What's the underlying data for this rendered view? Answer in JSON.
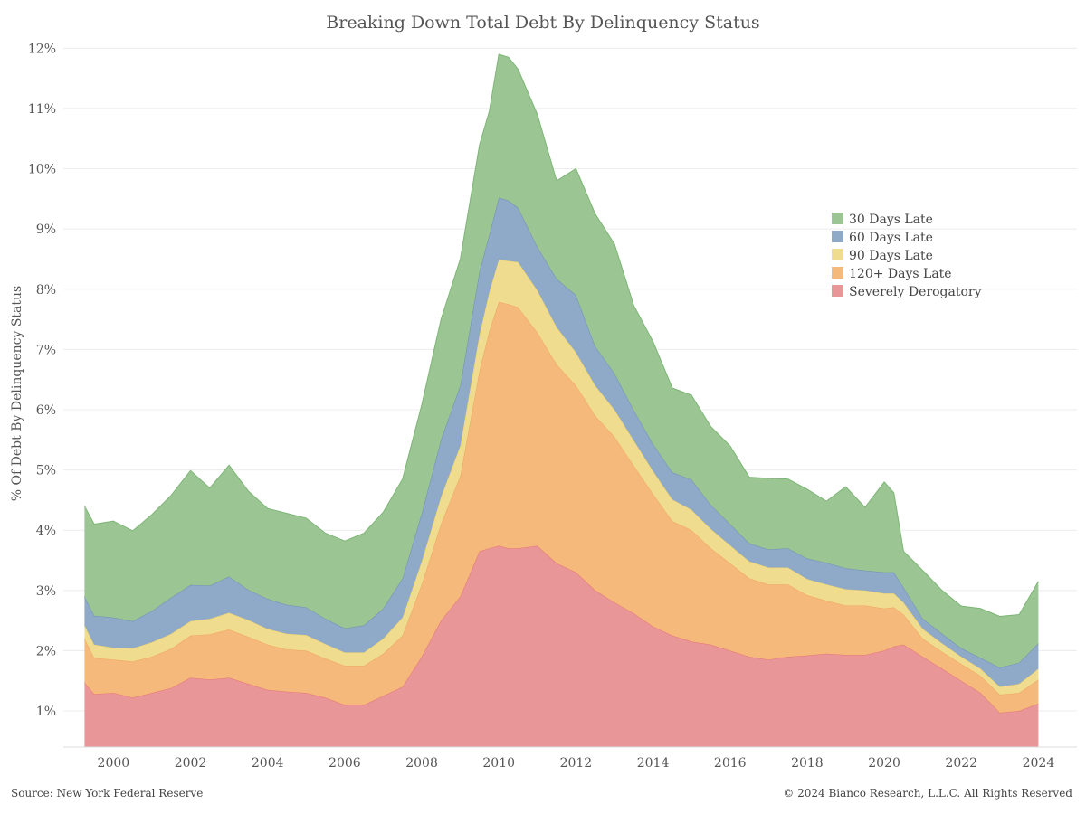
{
  "title": "Breaking Down Total Debt By Delinquency Status",
  "footer": {
    "source": "Source: New York Federal Reserve",
    "copyright": "© 2024 Bianco Research, L.L.C. All Rights Reserved"
  },
  "colors": {
    "severely_derogatory": "#e99699",
    "days120": "#f4b97b",
    "days90": "#f0dc8e",
    "days60": "#8fa9c8",
    "days30": "#9bc694",
    "edge_severely_derogatory": "#e5737a",
    "edge_days120": "#f0a35e",
    "edge_days90": "#e8cf6c",
    "edge_days60": "#6f8fb5",
    "edge_days30": "#7cb574"
  },
  "chart_data": {
    "type": "area",
    "stacked": true,
    "ylabel": "% Of Debt By Delinquency Status",
    "xlabel": "",
    "ylim": [
      0.4,
      12.2
    ],
    "xlim": [
      1998.7,
      2025.0
    ],
    "y_ticks": [
      1,
      2,
      3,
      4,
      5,
      6,
      7,
      8,
      9,
      10,
      11,
      12
    ],
    "y_tick_labels": [
      "1%",
      "2%",
      "3%",
      "4%",
      "5%",
      "6%",
      "7%",
      "8%",
      "9%",
      "10%",
      "11%",
      "12%"
    ],
    "x_ticks": [
      2000,
      2002,
      2004,
      2006,
      2008,
      2010,
      2012,
      2014,
      2016,
      2018,
      2020,
      2022,
      2024
    ],
    "x_tick_labels": [
      "2000",
      "2002",
      "2004",
      "2006",
      "2008",
      "2010",
      "2012",
      "2014",
      "2016",
      "2018",
      "2020",
      "2022",
      "2024"
    ],
    "grid": "horizontal",
    "legend_position": "right",
    "legend_order": [
      "30 Days Late",
      "60 Days Late",
      "90 Days Late",
      "120+ Days Late",
      "Severely Derogatory"
    ],
    "x": [
      1999.25,
      1999.5,
      2000,
      2000.5,
      2001,
      2001.5,
      2002,
      2002.5,
      2003,
      2003.5,
      2004,
      2004.5,
      2005,
      2005.5,
      2006,
      2006.5,
      2007,
      2007.5,
      2008,
      2008.5,
      2009,
      2009.5,
      2009.75,
      2010,
      2010.25,
      2010.5,
      2011,
      2011.5,
      2012,
      2012.5,
      2013,
      2013.5,
      2014,
      2014.5,
      2015,
      2015.5,
      2016,
      2016.5,
      2017,
      2017.5,
      2018,
      2018.5,
      2019,
      2019.5,
      2020,
      2020.25,
      2020.5,
      2021,
      2021.5,
      2022,
      2022.5,
      2023,
      2023.5,
      2024
    ],
    "series": [
      {
        "name": "Severely Derogatory",
        "key": "severely_derogatory",
        "values": [
          1.47,
          1.28,
          1.3,
          1.22,
          1.3,
          1.38,
          1.55,
          1.52,
          1.55,
          1.45,
          1.35,
          1.32,
          1.3,
          1.22,
          1.1,
          1.1,
          1.25,
          1.4,
          1.9,
          2.5,
          2.9,
          3.65,
          3.7,
          3.74,
          3.7,
          3.7,
          3.74,
          3.45,
          3.3,
          3.0,
          2.8,
          2.62,
          2.4,
          2.25,
          2.15,
          2.1,
          2.0,
          1.9,
          1.85,
          1.9,
          1.92,
          1.95,
          1.93,
          1.93,
          2.0,
          2.07,
          2.1,
          1.9,
          1.7,
          1.5,
          1.3,
          0.97,
          1.0,
          1.12
        ]
      },
      {
        "name": "120+ Days Late",
        "key": "days120",
        "values": [
          0.73,
          0.6,
          0.55,
          0.6,
          0.6,
          0.65,
          0.7,
          0.75,
          0.8,
          0.78,
          0.75,
          0.7,
          0.7,
          0.65,
          0.65,
          0.65,
          0.7,
          0.85,
          1.2,
          1.6,
          2.0,
          3.0,
          3.6,
          4.05,
          4.05,
          4.0,
          3.54,
          3.3,
          3.1,
          2.9,
          2.75,
          2.45,
          2.2,
          1.9,
          1.85,
          1.6,
          1.45,
          1.3,
          1.25,
          1.2,
          1.0,
          0.88,
          0.82,
          0.82,
          0.7,
          0.65,
          0.5,
          0.3,
          0.28,
          0.28,
          0.28,
          0.3,
          0.3,
          0.4
        ]
      },
      {
        "name": "90 Days Late",
        "key": "days90",
        "values": [
          0.22,
          0.22,
          0.2,
          0.22,
          0.24,
          0.25,
          0.24,
          0.26,
          0.28,
          0.28,
          0.26,
          0.26,
          0.26,
          0.24,
          0.22,
          0.22,
          0.25,
          0.3,
          0.38,
          0.45,
          0.5,
          0.6,
          0.65,
          0.7,
          0.72,
          0.75,
          0.7,
          0.62,
          0.55,
          0.5,
          0.45,
          0.42,
          0.38,
          0.36,
          0.34,
          0.32,
          0.3,
          0.28,
          0.28,
          0.28,
          0.27,
          0.27,
          0.27,
          0.25,
          0.25,
          0.23,
          0.2,
          0.16,
          0.14,
          0.12,
          0.12,
          0.13,
          0.15,
          0.18
        ]
      },
      {
        "name": "60 Days Late",
        "key": "days60",
        "values": [
          0.48,
          0.48,
          0.5,
          0.45,
          0.52,
          0.6,
          0.6,
          0.55,
          0.6,
          0.5,
          0.5,
          0.48,
          0.46,
          0.42,
          0.4,
          0.45,
          0.5,
          0.65,
          0.8,
          0.95,
          1.0,
          1.05,
          0.95,
          1.03,
          1.0,
          0.9,
          0.72,
          0.8,
          0.95,
          0.65,
          0.6,
          0.5,
          0.45,
          0.45,
          0.5,
          0.4,
          0.35,
          0.3,
          0.3,
          0.32,
          0.34,
          0.36,
          0.35,
          0.33,
          0.35,
          0.35,
          0.25,
          0.17,
          0.16,
          0.14,
          0.18,
          0.32,
          0.35,
          0.42
        ]
      },
      {
        "name": "30 Days Late",
        "key": "days30",
        "values": [
          1.5,
          1.52,
          1.6,
          1.5,
          1.6,
          1.7,
          1.9,
          1.62,
          1.85,
          1.64,
          1.5,
          1.52,
          1.48,
          1.42,
          1.45,
          1.53,
          1.6,
          1.65,
          1.8,
          2.0,
          2.1,
          2.1,
          2.05,
          2.38,
          2.38,
          2.3,
          2.2,
          1.63,
          2.1,
          2.2,
          2.15,
          1.74,
          1.7,
          1.4,
          1.4,
          1.3,
          1.3,
          1.1,
          1.18,
          1.15,
          1.15,
          1.02,
          1.35,
          1.05,
          1.5,
          1.32,
          0.6,
          0.8,
          0.72,
          0.7,
          0.82,
          0.85,
          0.8,
          1.03
        ]
      }
    ]
  }
}
